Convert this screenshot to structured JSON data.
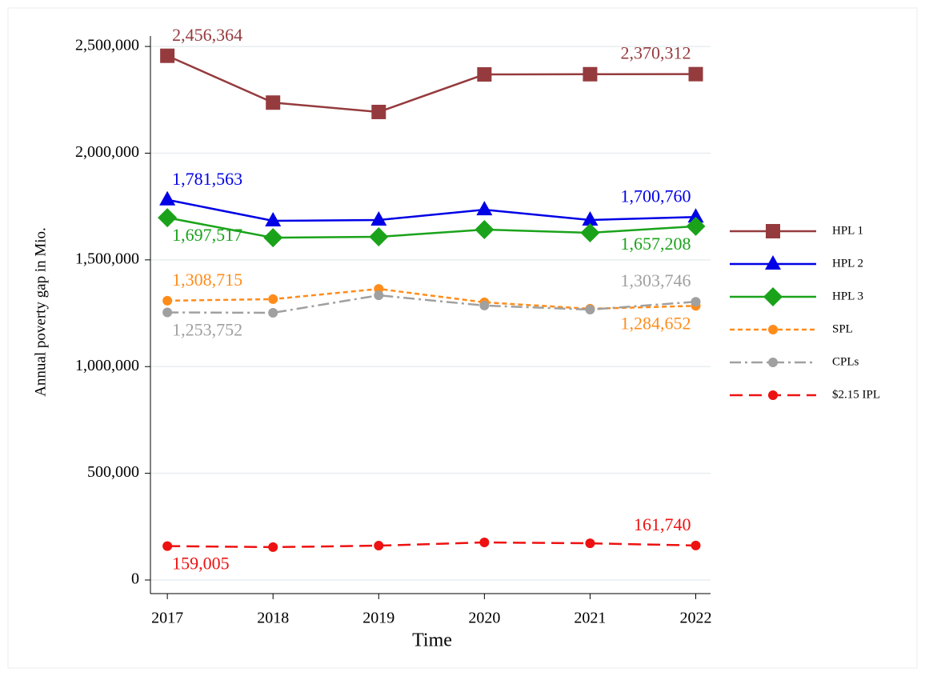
{
  "chart_data": {
    "type": "line",
    "x_label": "Time",
    "y_label": "Annual poverty gap in Mio.",
    "x": [
      2017,
      2018,
      2019,
      2020,
      2021,
      2022
    ],
    "xlim": [
      2016.84,
      2022.14
    ],
    "xticks": [
      2017,
      2018,
      2019,
      2020,
      2021,
      2022
    ],
    "ylim": [
      -63700,
      2549000
    ],
    "yticks": [
      {
        "value": 0,
        "label": "0"
      },
      {
        "value": 500000,
        "label": "500,000"
      },
      {
        "value": 1000000,
        "label": "1,000,000"
      },
      {
        "value": 1500000,
        "label": "1,500,000"
      },
      {
        "value": 2000000,
        "label": "2,000,000"
      },
      {
        "value": 2500000,
        "label": "2,500,000"
      }
    ],
    "grid": true,
    "legend": "right",
    "series": [
      {
        "name": "HPL 1",
        "color": "#953b3e",
        "marker": "square",
        "dash": "solid",
        "values": [
          2456364,
          2237000,
          2193000,
          2369000,
          2370000,
          2370312
        ],
        "value_labels": [
          "2,456,364",
          null,
          null,
          null,
          null,
          "2,370,312"
        ],
        "label_positions": [
          "above",
          "above"
        ]
      },
      {
        "name": "HPL 2",
        "color": "#0000e6",
        "marker": "triangle",
        "dash": "solid",
        "values": [
          1781563,
          1683000,
          1687000,
          1735000,
          1687000,
          1700760
        ],
        "value_labels": [
          "1,781,563",
          null,
          null,
          null,
          null,
          "1,700,760"
        ],
        "label_positions": [
          "above",
          "above"
        ]
      },
      {
        "name": "HPL 3",
        "color": "#1aa31a",
        "marker": "diamond",
        "dash": "solid",
        "values": [
          1697517,
          1604000,
          1608000,
          1642000,
          1627000,
          1657208
        ],
        "value_labels": [
          "1,697,517",
          null,
          null,
          null,
          null,
          "1,657,208"
        ],
        "label_positions": [
          "below",
          "below"
        ]
      },
      {
        "name": "SPL",
        "color": "#ff8c1a",
        "marker": "circle",
        "dash": "short",
        "values": [
          1308715,
          1316000,
          1364000,
          1301000,
          1271000,
          1284652
        ],
        "value_labels": [
          "1,308,715",
          null,
          null,
          null,
          null,
          "1,284,652"
        ],
        "label_positions": [
          "above",
          "below"
        ]
      },
      {
        "name": "CPLs",
        "color": "#a0a0a0",
        "marker": "circle",
        "dash": "dashdot",
        "values": [
          1253752,
          1252000,
          1334000,
          1286000,
          1267000,
          1303746
        ],
        "value_labels": [
          "1,253,752",
          null,
          null,
          null,
          null,
          "1,303,746"
        ],
        "label_positions": [
          "below",
          "above"
        ]
      },
      {
        "name": "$2.15 IPL",
        "color": "#ee1111",
        "marker": "circle",
        "dash": "long",
        "values": [
          159005,
          154000,
          161000,
          176000,
          172000,
          161740
        ],
        "value_labels": [
          "159,005",
          null,
          null,
          null,
          null,
          "161,740"
        ],
        "label_positions": [
          "below",
          "above"
        ]
      }
    ]
  }
}
